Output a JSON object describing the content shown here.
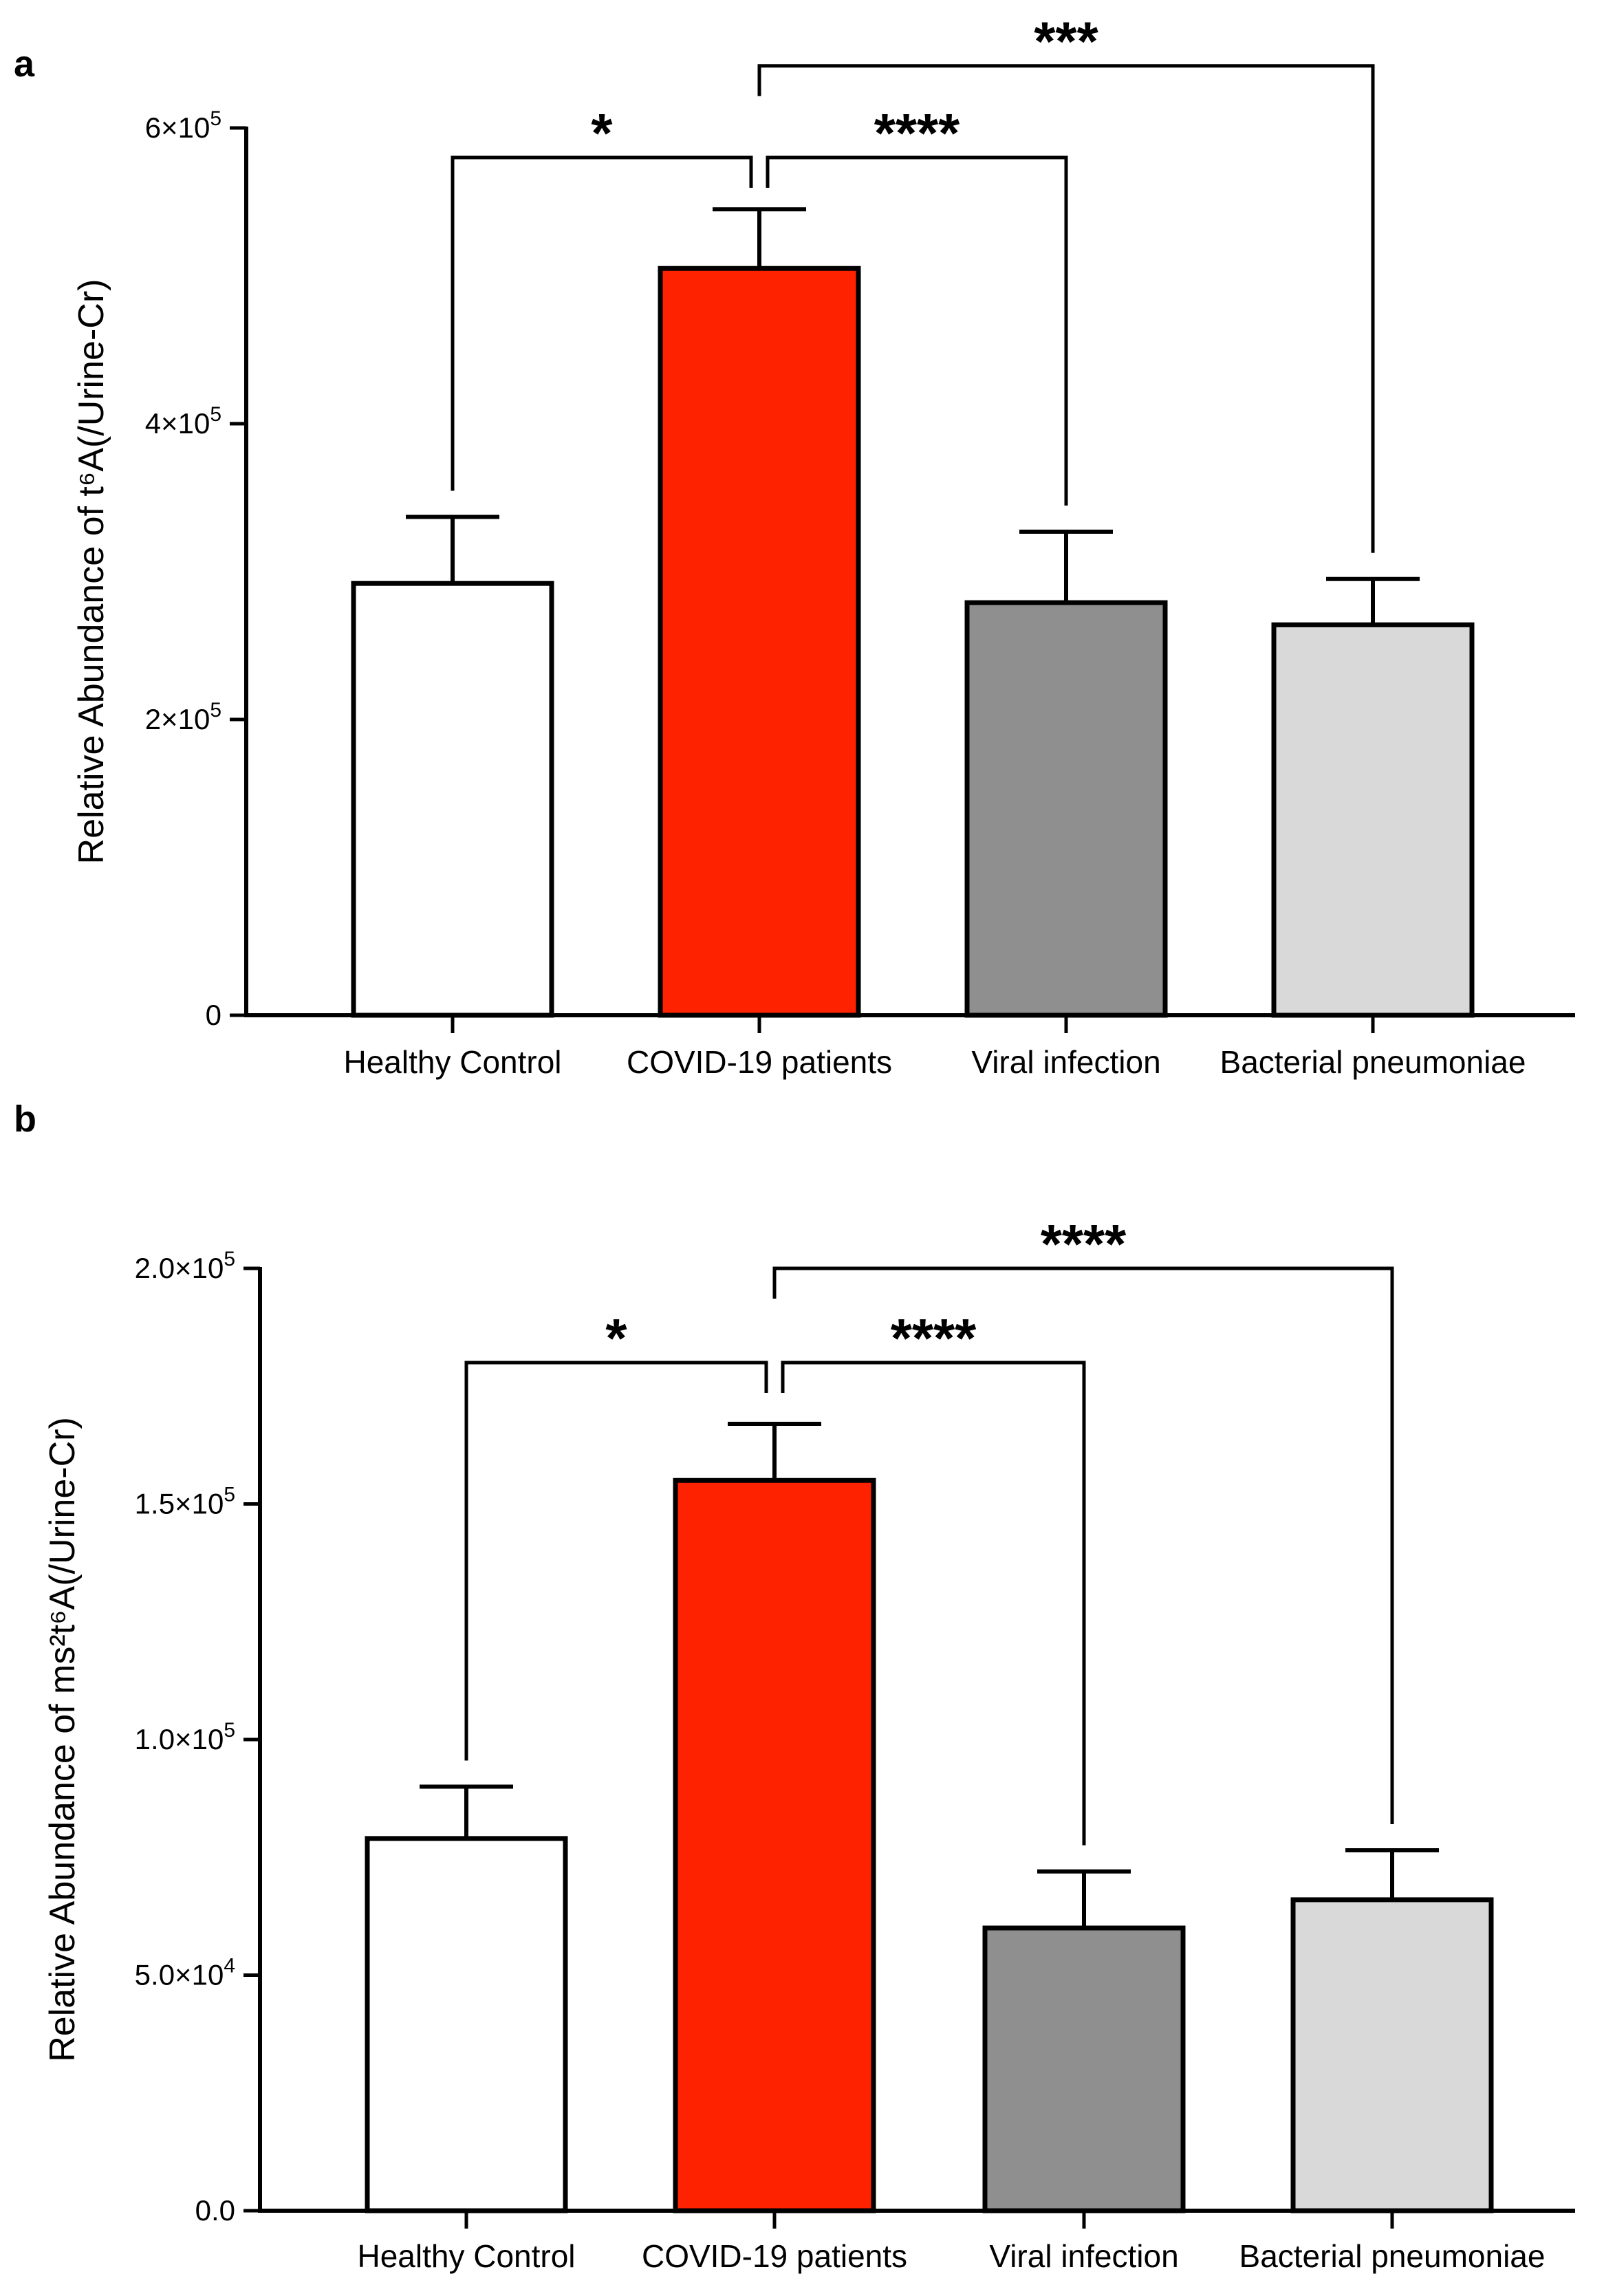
{
  "chart_data": [
    {
      "panel_label": "a",
      "type": "bar",
      "categories": [
        "Healthy Control",
        "COVID-19 patients",
        "Viral infection",
        "Bacterial pneumoniae"
      ],
      "values": [
        292000,
        505000,
        279000,
        264000
      ],
      "errors": [
        45000,
        40000,
        48000,
        31000
      ],
      "colors": [
        "#ffffff",
        "#ff2200",
        "#8f8f8f",
        "#d9d9d9"
      ],
      "ylabel": "Relative  Abundance of t⁶A(/Urine-Cr)",
      "ylim": [
        0,
        600000
      ],
      "yticks": [
        {
          "value": 0,
          "mantissa": "0",
          "exponent": ""
        },
        {
          "value": 200000,
          "mantissa": "2×10",
          "exponent": "5"
        },
        {
          "value": 400000,
          "mantissa": "4×10",
          "exponent": "5"
        },
        {
          "value": 600000,
          "mantissa": "6×10",
          "exponent": "5"
        }
      ],
      "significance": [
        {
          "from": 0,
          "to": 1,
          "label": "*",
          "level": 580000
        },
        {
          "from": 1,
          "to": 2,
          "label": "****",
          "level": 580000
        },
        {
          "from": 1,
          "to": 3,
          "label": "***",
          "level": 642000
        }
      ]
    },
    {
      "panel_label": "b",
      "type": "bar",
      "categories": [
        "Healthy Control",
        "COVID-19 patients",
        "Viral infection",
        "Bacterial pneumoniae"
      ],
      "values": [
        79000,
        155000,
        60000,
        66000
      ],
      "errors": [
        11000,
        12000,
        12000,
        10500
      ],
      "colors": [
        "#ffffff",
        "#ff2200",
        "#8f8f8f",
        "#d9d9d9"
      ],
      "ylabel": "Relative  Abundance of ms²t⁶A(/Urine-Cr)",
      "ylim": [
        0,
        200000
      ],
      "yticks": [
        {
          "value": 0,
          "mantissa": "0.0",
          "exponent": ""
        },
        {
          "value": 50000,
          "mantissa": "5.0×10",
          "exponent": "4"
        },
        {
          "value": 100000,
          "mantissa": "1.0×10",
          "exponent": "5"
        },
        {
          "value": 150000,
          "mantissa": "1.5×10",
          "exponent": "5"
        },
        {
          "value": 200000,
          "mantissa": "2.0×10",
          "exponent": "5"
        }
      ],
      "significance": [
        {
          "from": 0,
          "to": 1,
          "label": "*",
          "level": 180000
        },
        {
          "from": 1,
          "to": 2,
          "label": "****",
          "level": 180000
        },
        {
          "from": 1,
          "to": 3,
          "label": "****",
          "level": 200000
        }
      ]
    }
  ]
}
